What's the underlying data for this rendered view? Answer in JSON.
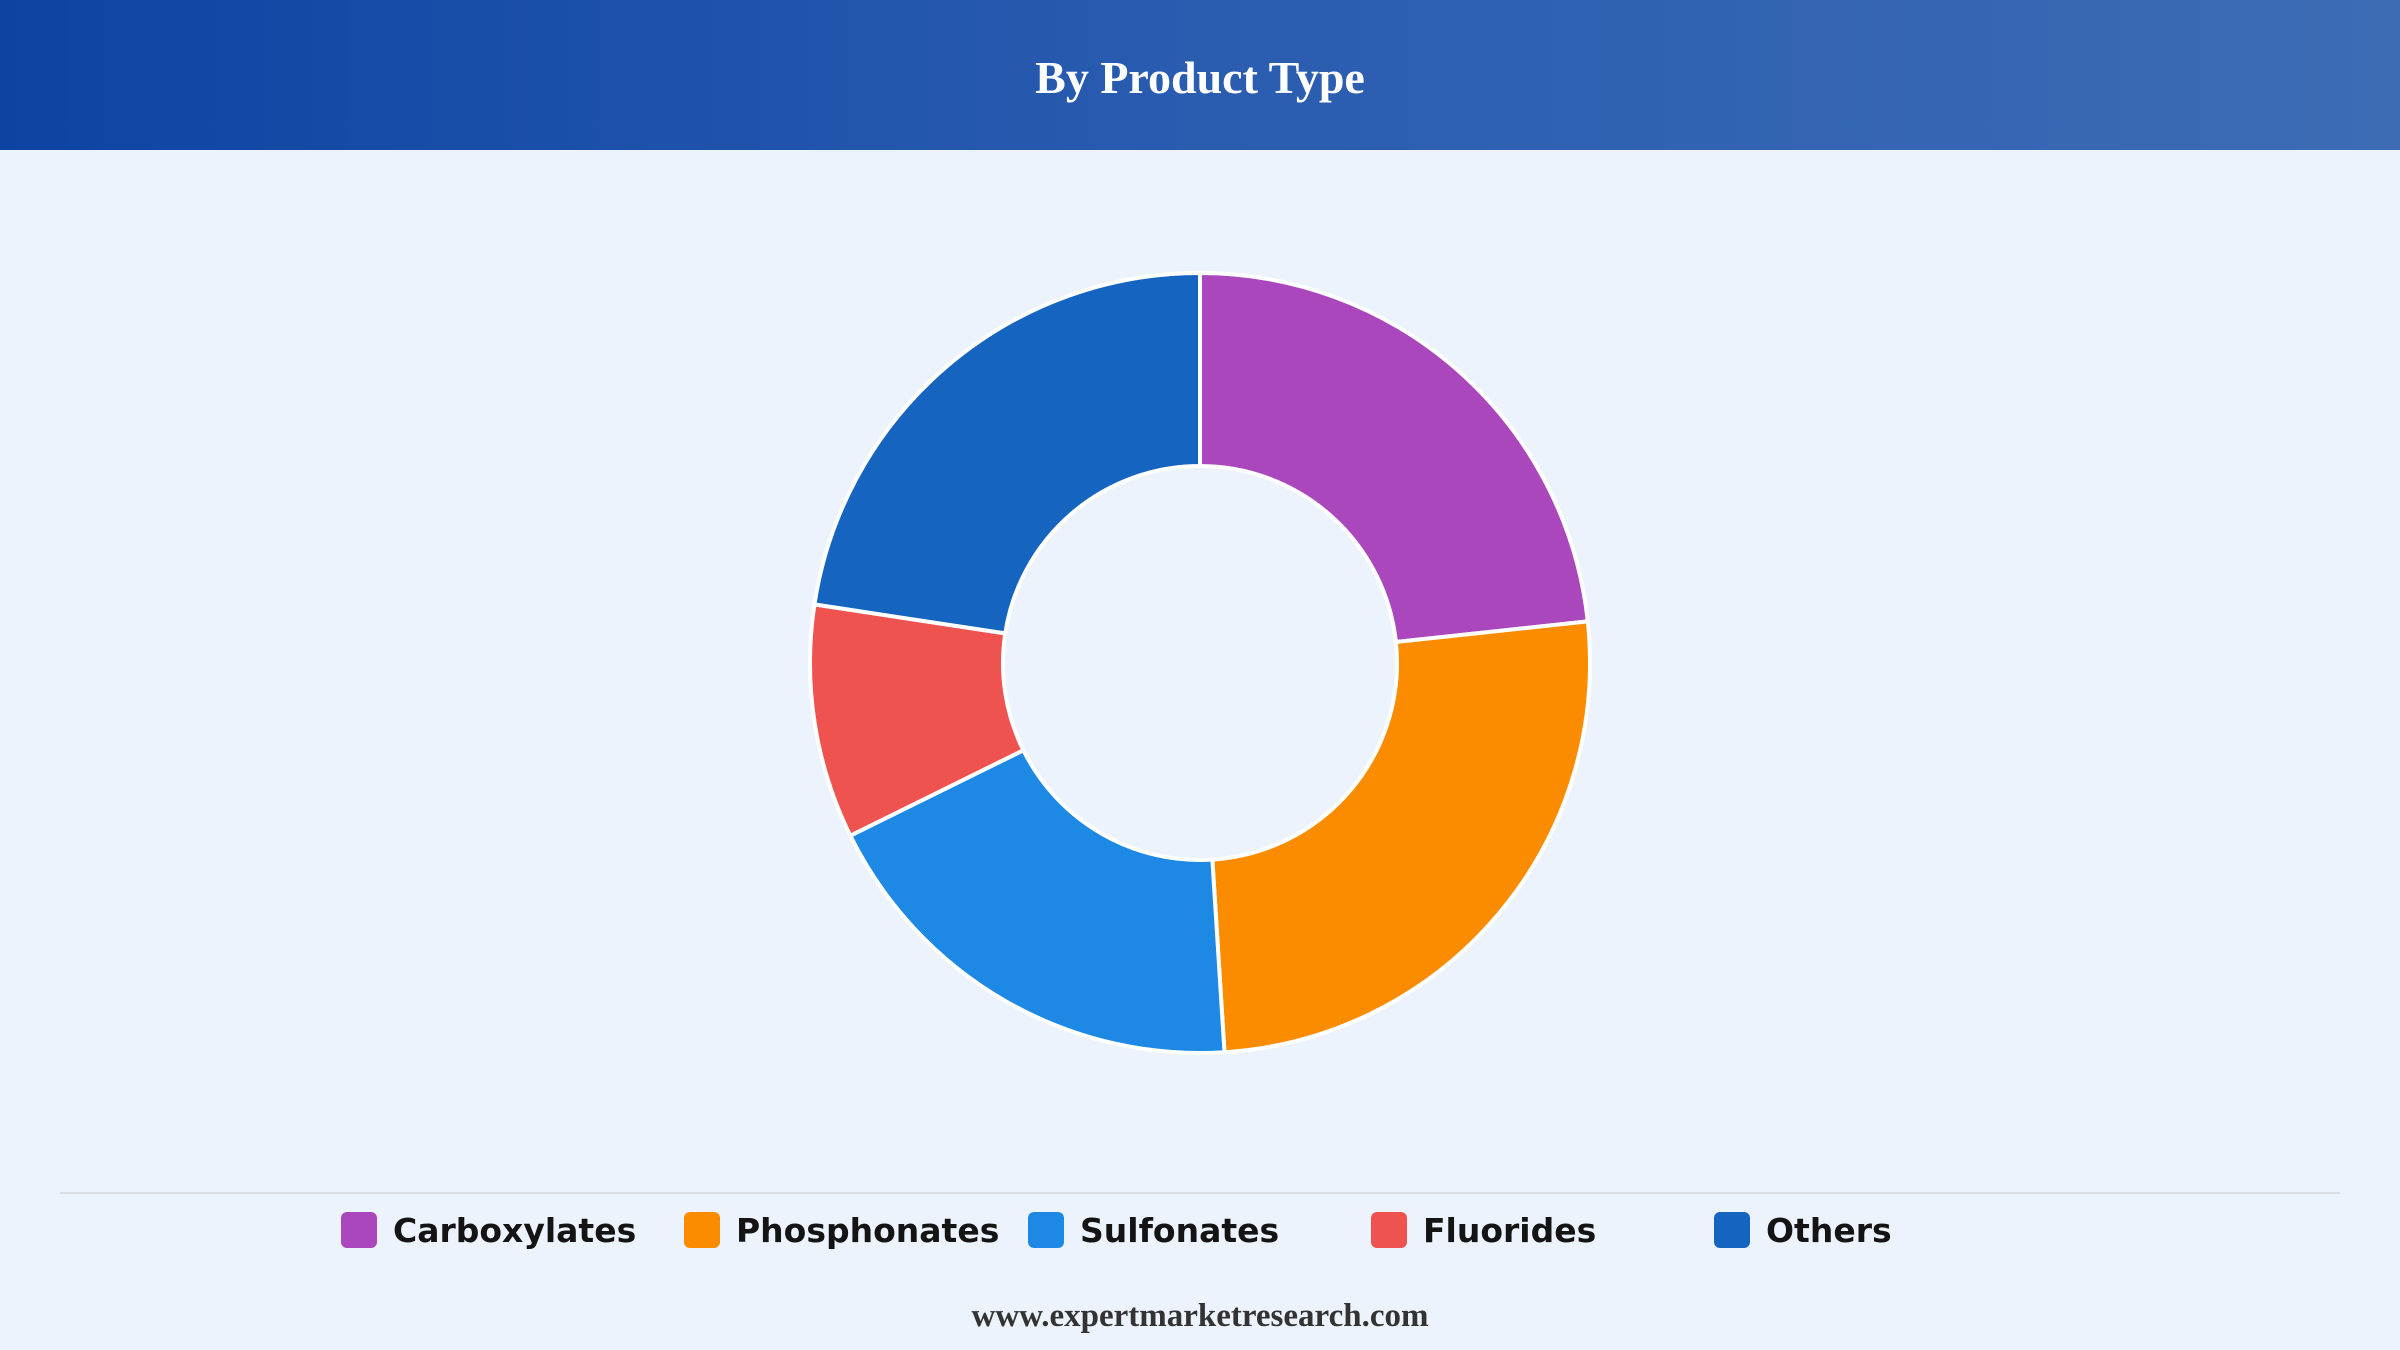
{
  "header": {
    "title": "By Product Type"
  },
  "chart_data": {
    "type": "pie",
    "title": "By Product Type",
    "donut": true,
    "legend_position": "bottom",
    "categories": [
      "Carboxylates",
      "Phosphonates",
      "Sulfonates",
      "Fluorides",
      "Others"
    ],
    "values": [
      23.3,
      25.7,
      18.7,
      9.7,
      22.6
    ],
    "colors": [
      "#ab47bc",
      "#fb8c00",
      "#1e88e5",
      "#ef5350",
      "#1565c0"
    ]
  },
  "legend": {
    "items": [
      {
        "label": "Carboxylates",
        "color": "#ab47bc"
      },
      {
        "label": "Phosphonates",
        "color": "#fb8c00"
      },
      {
        "label": "Sulfonates",
        "color": "#1e88e5"
      },
      {
        "label": "Fluorides",
        "color": "#ef5350"
      },
      {
        "label": "Others",
        "color": "#1565c0"
      }
    ]
  },
  "footer": {
    "text": "www.expertmarketresearch.com"
  }
}
